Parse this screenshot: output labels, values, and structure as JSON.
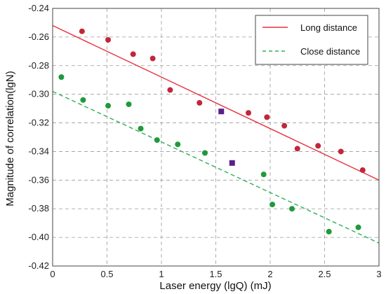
{
  "chart_data": {
    "type": "scatter",
    "title": "",
    "xlabel": "Laser energy (lgQ) (mJ)",
    "ylabel": "Magnitude of correlation(lgN)",
    "xlim": [
      0,
      3
    ],
    "ylim": [
      -0.42,
      -0.24
    ],
    "x_ticks": [
      "0",
      "0.5",
      "1",
      "1.5",
      "2",
      "2.5",
      "3"
    ],
    "y_ticks": [
      "-0.24",
      "-0.26",
      "-0.28",
      "-0.30",
      "-0.32",
      "-0.34",
      "-0.36",
      "-0.38",
      "-0.40",
      "-0.42"
    ],
    "grid": true,
    "grid_style": "dashed",
    "legend_position": "top-right",
    "series": [
      {
        "name": "Long distance",
        "marker": "circle",
        "color": "#c0273a",
        "points": [
          [
            0.27,
            -0.256
          ],
          [
            0.51,
            -0.262
          ],
          [
            0.74,
            -0.272
          ],
          [
            0.92,
            -0.275
          ],
          [
            1.08,
            -0.297
          ],
          [
            1.35,
            -0.306
          ],
          [
            1.8,
            -0.313
          ],
          [
            1.97,
            -0.316
          ],
          [
            2.13,
            -0.322
          ],
          [
            2.25,
            -0.338
          ],
          [
            2.44,
            -0.336
          ],
          [
            2.65,
            -0.34
          ],
          [
            2.85,
            -0.353
          ]
        ],
        "fit": {
          "style": "solid",
          "color": "#e8303c",
          "from": [
            0,
            -0.252
          ],
          "to": [
            3,
            -0.36
          ]
        }
      },
      {
        "name": "Close distance",
        "marker": "circle",
        "color": "#1f9a3a",
        "points": [
          [
            0.08,
            -0.288
          ],
          [
            0.28,
            -0.304
          ],
          [
            0.51,
            -0.308
          ],
          [
            0.7,
            -0.307
          ],
          [
            0.81,
            -0.324
          ],
          [
            0.96,
            -0.332
          ],
          [
            1.15,
            -0.335
          ],
          [
            1.4,
            -0.341
          ],
          [
            1.94,
            -0.356
          ],
          [
            2.02,
            -0.377
          ],
          [
            2.2,
            -0.38
          ],
          [
            2.54,
            -0.396
          ],
          [
            2.81,
            -0.393
          ]
        ],
        "fit": {
          "style": "dashed",
          "color": "#2fae5a",
          "from": [
            0,
            -0.298
          ],
          "to": [
            3,
            -0.404
          ]
        }
      },
      {
        "marker": "square",
        "color": "#5a1f8a",
        "points": [
          [
            1.55,
            -0.312
          ],
          [
            1.65,
            -0.348
          ]
        ]
      }
    ]
  }
}
